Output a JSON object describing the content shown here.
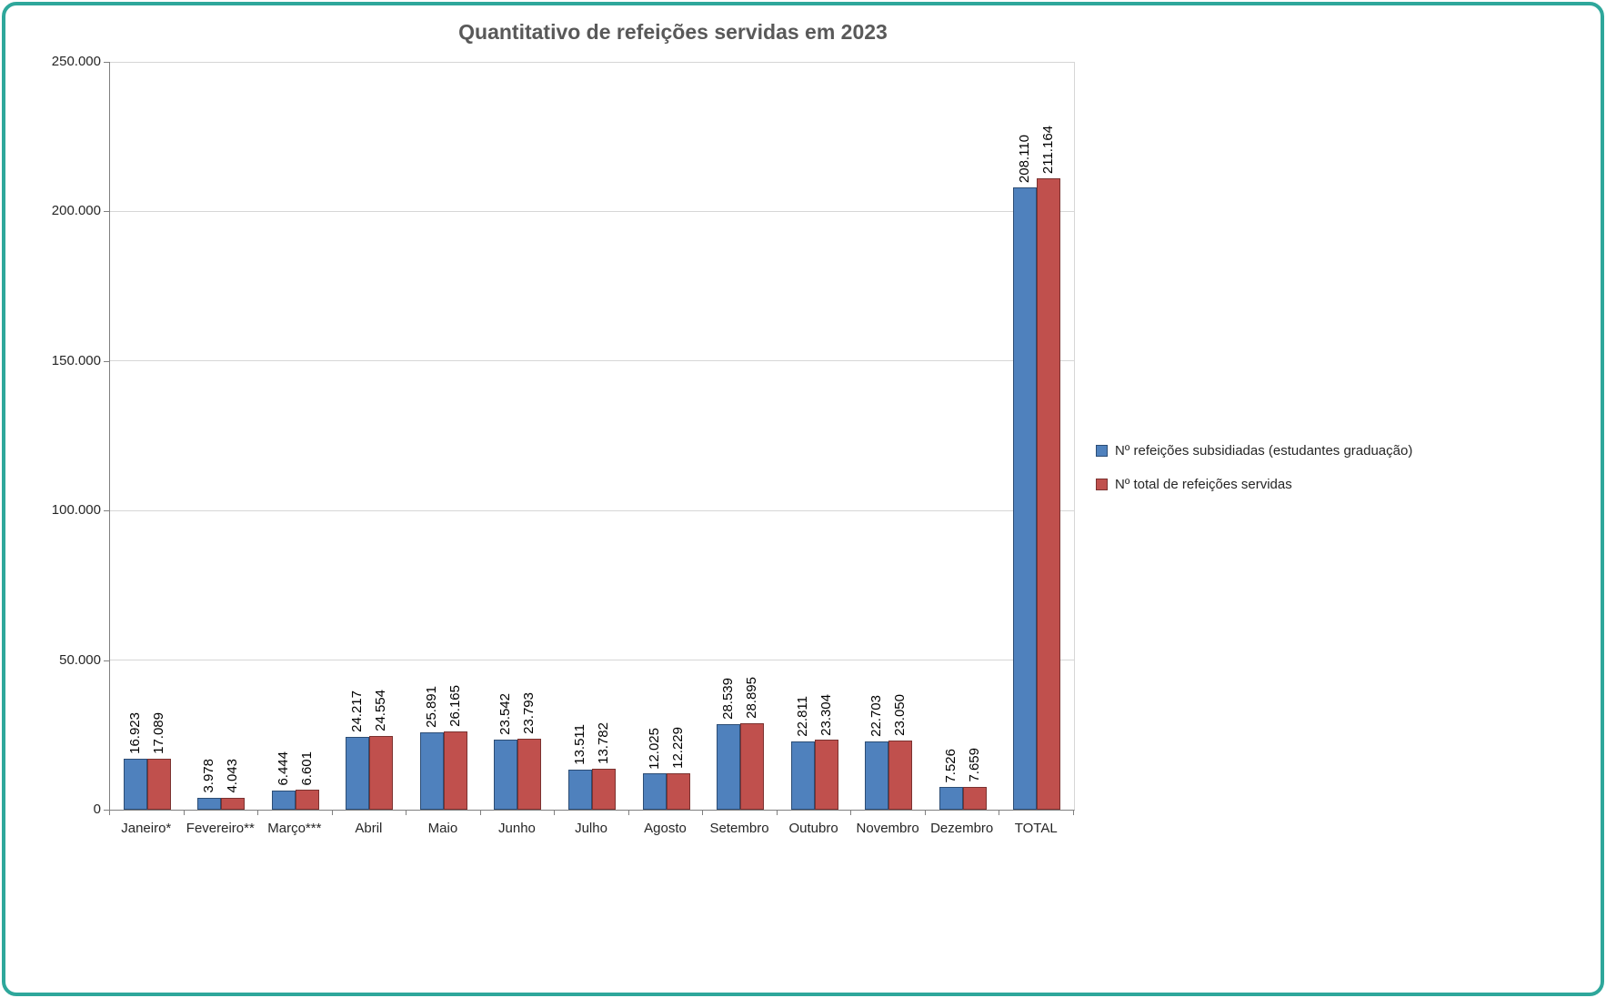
{
  "frame": {
    "border_color": "#2EA79B"
  },
  "chart_data": {
    "type": "bar",
    "title": "Quantitativo de refeições servidas em 2023",
    "xlabel": "",
    "ylabel": "",
    "grid": true,
    "legend_position": "right",
    "ylim": [
      0,
      250000
    ],
    "yticks": [
      {
        "value": 0,
        "label": "0"
      },
      {
        "value": 50000,
        "label": "50.000"
      },
      {
        "value": 100000,
        "label": "100.000"
      },
      {
        "value": 150000,
        "label": "150.000"
      },
      {
        "value": 200000,
        "label": "200.000"
      },
      {
        "value": 250000,
        "label": "250.000"
      }
    ],
    "categories": [
      "Janeiro*",
      "Fevereiro**",
      "Março***",
      "Abril",
      "Maio",
      "Junho",
      "Julho",
      "Agosto",
      "Setembro",
      "Outubro",
      "Novembro",
      "Dezembro",
      "TOTAL"
    ],
    "series": [
      {
        "id": "subsidiadas",
        "name": "Nº refeições subsidiadas (estudantes graduação)",
        "color": "#4F81BD",
        "border_color": "#2C4D75",
        "values": [
          16923,
          3978,
          6444,
          24217,
          25891,
          23542,
          13511,
          12025,
          28539,
          22811,
          22703,
          7526,
          208110
        ],
        "labels": [
          "16.923",
          "3.978",
          "6.444",
          "24.217",
          "25.891",
          "23.542",
          "13.511",
          "12.025",
          "28.539",
          "22.811",
          "22.703",
          "7.526",
          "208.110"
        ]
      },
      {
        "id": "total",
        "name": "Nº total de refeições servidas",
        "color": "#C0504D",
        "border_color": "#7B3230",
        "values": [
          17089,
          4043,
          6601,
          24554,
          26165,
          23793,
          13782,
          12229,
          28895,
          23304,
          23050,
          7659,
          211164
        ],
        "labels": [
          "17.089",
          "4.043",
          "6.601",
          "24.554",
          "26.165",
          "23.793",
          "13.782",
          "12.229",
          "28.895",
          "23.304",
          "23.050",
          "7.659",
          "211.164"
        ]
      }
    ]
  }
}
